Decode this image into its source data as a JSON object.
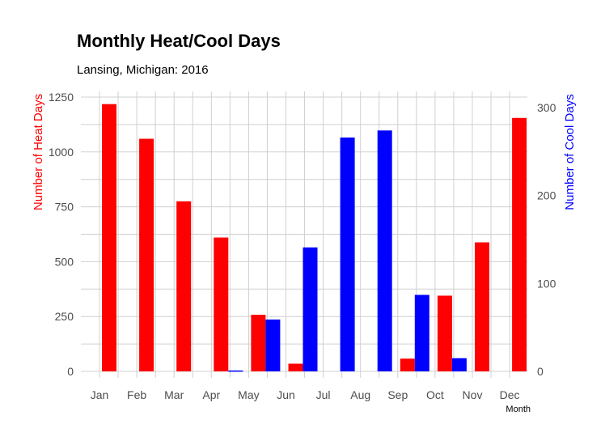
{
  "chart_data": {
    "type": "bar",
    "title": "Monthly Heat/Cool Days",
    "subtitle": "Lansing, Michigan: 2016",
    "xlabel": "Month",
    "ylabel_left": "Number of Heat Days",
    "ylabel_right": "Number of Cool Days",
    "categories": [
      "Jan",
      "Feb",
      "Mar",
      "Apr",
      "May",
      "Jun",
      "Jul",
      "Aug",
      "Sep",
      "Oct",
      "Nov",
      "Dec"
    ],
    "series": [
      {
        "name": "Heat Days",
        "axis": "left",
        "color": "#ff0000",
        "values": [
          1218,
          1060,
          775,
          610,
          258,
          35,
          0,
          0,
          58,
          345,
          588,
          1155
        ]
      },
      {
        "name": "Cool Days",
        "axis": "right",
        "color": "#0000ff",
        "values": [
          0,
          0,
          0,
          1,
          59,
          141,
          266,
          274,
          87,
          15,
          0,
          0
        ]
      }
    ],
    "ylim_left": [
      0,
      1250
    ],
    "ylim_right": [
      0,
      300
    ],
    "yticks_left": [
      0,
      250,
      500,
      750,
      1000,
      1250
    ],
    "yticks_right": [
      0,
      100,
      200,
      300
    ],
    "grid": true,
    "legend": "none"
  }
}
